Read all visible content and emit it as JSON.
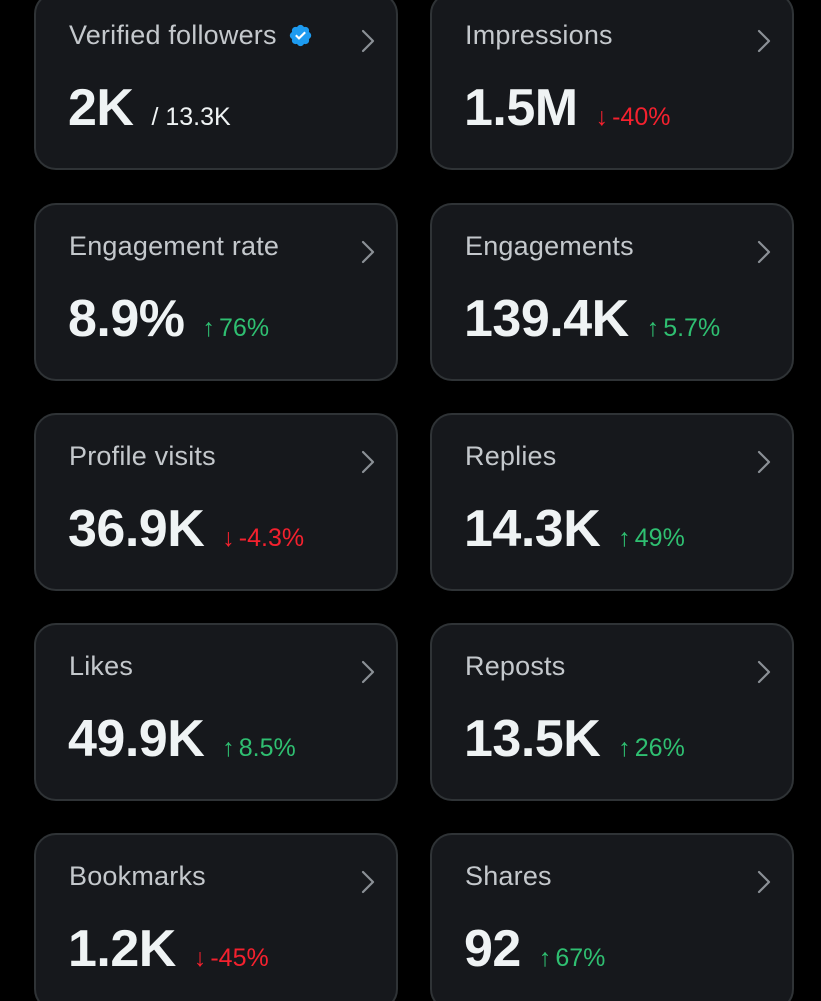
{
  "colors": {
    "background": "#000000",
    "card": "#16181c",
    "border": "#2f3336",
    "up": "#2fbf71",
    "down": "#f4212e",
    "verified": "#1d9bf0"
  },
  "metrics": [
    {
      "label": "Verified followers",
      "value": "2K",
      "sub": "/ 13.3K"
    },
    {
      "label": "Impressions",
      "value": "1.5M",
      "delta": "-40%",
      "delta_arrow": "↓",
      "direction": "down"
    },
    {
      "label": "Engagement rate",
      "value": "8.9%",
      "delta": "76%",
      "delta_arrow": "↑",
      "direction": "up"
    },
    {
      "label": "Engagements",
      "value": "139.4K",
      "delta": "5.7%",
      "delta_arrow": "↑",
      "direction": "up"
    },
    {
      "label": "Profile visits",
      "value": "36.9K",
      "delta": "-4.3%",
      "delta_arrow": "↓",
      "direction": "down"
    },
    {
      "label": "Replies",
      "value": "14.3K",
      "delta": "49%",
      "delta_arrow": "↑",
      "direction": "up"
    },
    {
      "label": "Likes",
      "value": "49.9K",
      "delta": "8.5%",
      "delta_arrow": "↑",
      "direction": "up"
    },
    {
      "label": "Reposts",
      "value": "13.5K",
      "delta": "26%",
      "delta_arrow": "↑",
      "direction": "up"
    },
    {
      "label": "Bookmarks",
      "value": "1.2K",
      "delta": "-45%",
      "delta_arrow": "↓",
      "direction": "down"
    },
    {
      "label": "Shares",
      "value": "92",
      "delta": "67%",
      "delta_arrow": "↑",
      "direction": "up"
    }
  ]
}
